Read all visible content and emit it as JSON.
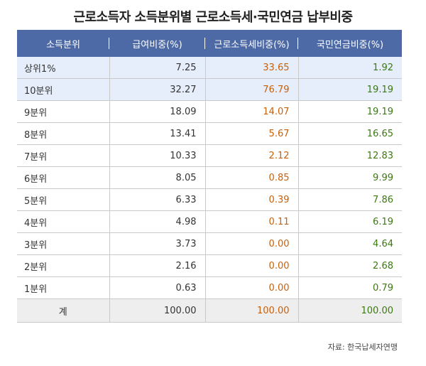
{
  "chart_data": {
    "type": "table",
    "title": "근로소득자 소득분위별 근로소득세·국민연금 납부비중",
    "columns": [
      "소득분위",
      "급여비중(%)",
      "근로소득세비중(%)",
      "국민연금비중(%)"
    ],
    "rows": [
      {
        "label": "상위1%",
        "salary": "7.25",
        "tax": "33.65",
        "pension": "1.92"
      },
      {
        "label": "10분위",
        "salary": "32.27",
        "tax": "76.79",
        "pension": "19.19"
      },
      {
        "label": "9분위",
        "salary": "18.09",
        "tax": "14.07",
        "pension": "19.19"
      },
      {
        "label": "8분위",
        "salary": "13.41",
        "tax": "5.67",
        "pension": "16.65"
      },
      {
        "label": "7분위",
        "salary": "10.33",
        "tax": "2.12",
        "pension": "12.83"
      },
      {
        "label": "6분위",
        "salary": "8.05",
        "tax": "0.85",
        "pension": "9.99"
      },
      {
        "label": "5분위",
        "salary": "6.33",
        "tax": "0.39",
        "pension": "7.86"
      },
      {
        "label": "4분위",
        "salary": "4.98",
        "tax": "0.11",
        "pension": "6.19"
      },
      {
        "label": "3분위",
        "salary": "3.73",
        "tax": "0.00",
        "pension": "4.64"
      },
      {
        "label": "2분위",
        "salary": "2.16",
        "tax": "0.00",
        "pension": "2.68"
      },
      {
        "label": "1분위",
        "salary": "0.63",
        "tax": "0.00",
        "pension": "0.79"
      }
    ],
    "total": {
      "label": "계",
      "salary": "100.00",
      "tax": "100.00",
      "pension": "100.00"
    },
    "colors": {
      "header": "#4d6aa6",
      "tax": "#c8600a",
      "pension": "#3a7a0e",
      "highlight": "#e6eefb",
      "total": "#eeeeee"
    }
  },
  "source": "자료: 한국납세자연맹"
}
